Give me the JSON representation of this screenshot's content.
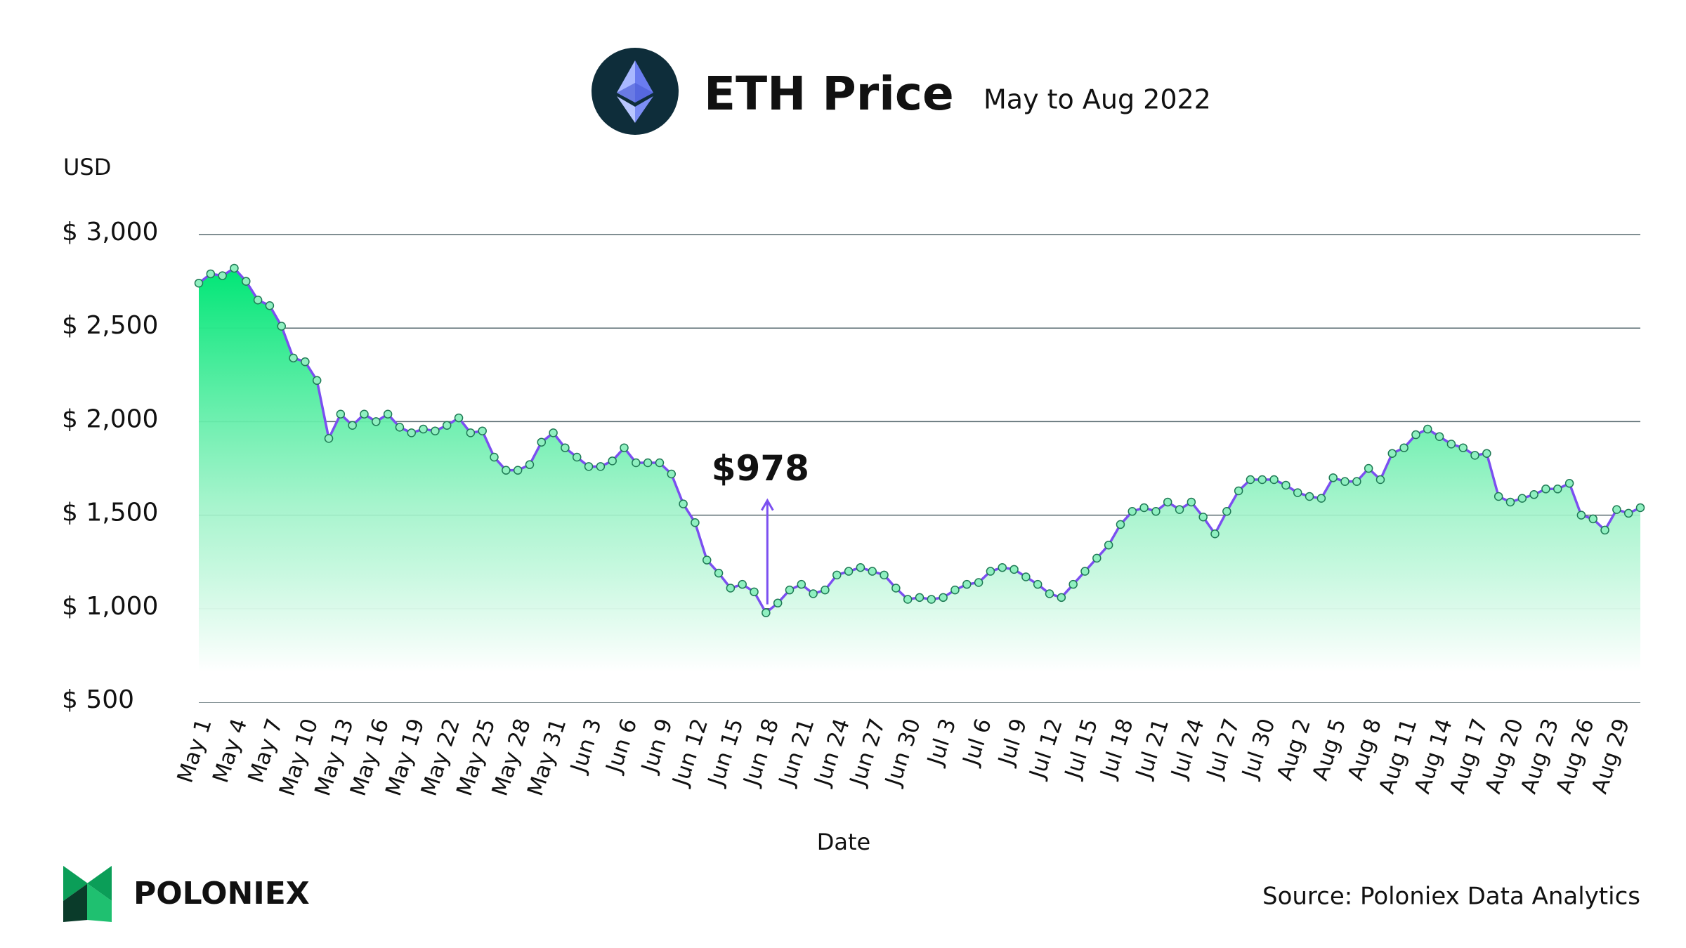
{
  "chart_data": {
    "type": "line",
    "title": "ETH Price",
    "subtitle": "May to Aug 2022",
    "y_label": "USD",
    "x_label": "Date",
    "source": "Source: Poloniex Data Analytics",
    "brand": "POLONIEX",
    "categories": [
      "May 1",
      null,
      null,
      "May 4",
      null,
      null,
      "May 7",
      null,
      null,
      "May 10",
      null,
      null,
      "May 13",
      null,
      null,
      "May 16",
      null,
      null,
      "May 19",
      null,
      null,
      "May 22",
      null,
      null,
      "May 25",
      null,
      null,
      "May 28",
      null,
      null,
      "May 31",
      null,
      null,
      "Jun 3",
      null,
      null,
      "Jun 6",
      null,
      null,
      "Jun 9",
      null,
      null,
      "Jun 12",
      null,
      null,
      "Jun 15",
      null,
      null,
      "Jun 18",
      null,
      null,
      "Jun 21",
      null,
      null,
      "Jun 24",
      null,
      null,
      "Jun 27",
      null,
      null,
      "Jun 30",
      null,
      null,
      "Jul 3",
      null,
      null,
      "Jul 6",
      null,
      null,
      "Jul 9",
      null,
      null,
      "Jul 12",
      null,
      null,
      "Jul 15",
      null,
      null,
      "Jul 18",
      null,
      null,
      "Jul 21",
      null,
      null,
      "Jul 24",
      null,
      null,
      "Jul 27",
      null,
      null,
      "Jul 30",
      null,
      null,
      "Aug 2",
      null,
      null,
      "Aug 5",
      null,
      null,
      "Aug 8",
      null,
      null,
      "Aug 11",
      null,
      null,
      "Aug 14",
      null,
      null,
      "Aug 17",
      null,
      null,
      "Aug 20",
      null,
      null,
      "Aug 23",
      null,
      null,
      "Aug 26",
      null,
      null,
      "Aug 29",
      null,
      null
    ],
    "values": [
      2740,
      2790,
      2780,
      2820,
      2750,
      2650,
      2620,
      2510,
      2340,
      2320,
      2220,
      1910,
      2040,
      1980,
      2040,
      2000,
      2040,
      1970,
      1940,
      1960,
      1950,
      1980,
      2020,
      1940,
      1950,
      1810,
      1740,
      1740,
      1770,
      1890,
      1940,
      1860,
      1810,
      1760,
      1760,
      1790,
      1860,
      1780,
      1780,
      1780,
      1720,
      1560,
      1460,
      1260,
      1190,
      1110,
      1130,
      1090,
      978,
      1030,
      1100,
      1130,
      1080,
      1100,
      1180,
      1200,
      1220,
      1200,
      1180,
      1110,
      1050,
      1060,
      1050,
      1060,
      1100,
      1130,
      1140,
      1200,
      1220,
      1210,
      1170,
      1130,
      1080,
      1060,
      1130,
      1200,
      1270,
      1340,
      1450,
      1520,
      1540,
      1520,
      1570,
      1530,
      1570,
      1490,
      1400,
      1520,
      1630,
      1690,
      1690,
      1690,
      1660,
      1620,
      1600,
      1590,
      1700,
      1680,
      1680,
      1750,
      1690,
      1830,
      1860,
      1930,
      1960,
      1920,
      1880,
      1860,
      1820,
      1830,
      1600,
      1570,
      1590,
      1610,
      1640,
      1640,
      1670,
      1500,
      1480,
      1420,
      1530,
      1510,
      1540
    ],
    "value_labels": [
      null,
      null,
      null,
      null,
      null,
      null,
      null,
      null,
      null,
      null,
      null,
      null,
      null,
      null,
      null,
      null,
      null,
      null,
      null,
      null,
      null,
      null,
      null,
      null,
      null,
      null,
      null,
      null,
      null,
      null,
      null,
      null,
      null,
      null,
      null,
      null,
      null,
      null,
      null,
      null,
      null,
      null,
      null,
      null,
      null,
      null,
      null,
      null,
      "$978",
      null,
      null,
      null,
      null,
      null,
      null,
      null,
      null,
      null,
      null,
      null,
      null,
      null,
      null,
      null,
      null,
      null,
      null,
      null,
      null,
      null,
      null,
      null,
      null,
      null,
      null,
      null,
      null,
      null,
      null,
      null,
      null,
      null,
      null,
      null,
      null,
      null,
      null,
      null,
      null,
      null,
      null,
      null,
      null,
      null,
      null,
      null,
      null,
      null,
      null,
      null,
      null,
      null,
      null,
      null,
      null,
      null,
      null,
      null,
      null,
      null,
      null,
      null,
      null,
      null,
      null,
      null,
      null,
      null,
      null,
      null,
      null,
      null,
      null
    ],
    "line_color": "#7b4ff0",
    "area_color": "#00e676",
    "marker_color": "#8ff0c0",
    "label_color": "#7b4ff0",
    "ylim": [
      500,
      3000
    ],
    "yticks": [
      {
        "value": 500,
        "label": "$ 500"
      },
      {
        "value": 1000,
        "label": "$ 1,000"
      },
      {
        "value": 1500,
        "label": "$ 1,500"
      },
      {
        "value": 2000,
        "label": "$ 2,000"
      },
      {
        "value": 2500,
        "label": "$ 2,500"
      },
      {
        "value": 3000,
        "label": "$ 3,000"
      }
    ],
    "grid": true
  }
}
